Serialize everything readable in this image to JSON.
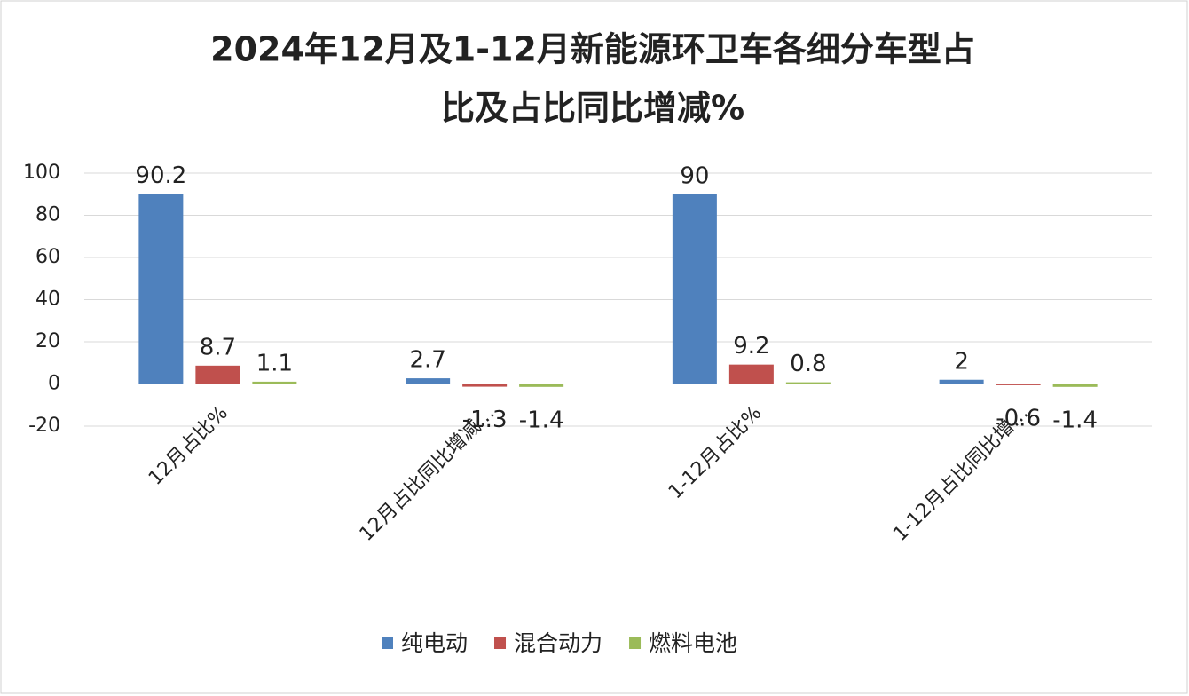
{
  "chart_data": {
    "type": "bar",
    "title": [
      "2024年12月及1-12月新能源环卫车各细分车型占",
      "比及占比同比增减%"
    ],
    "categories": [
      "12月占比%",
      "12月占比同比增减…",
      "1-12月占比%",
      "1-12月占比同比增…"
    ],
    "series": [
      {
        "name": "纯电动",
        "color": "#4f81bd",
        "values": [
          90.2,
          2.7,
          90,
          2
        ]
      },
      {
        "name": "混合动力",
        "color": "#c0504d",
        "values": [
          8.7,
          -1.3,
          9.2,
          -0.6
        ]
      },
      {
        "name": "燃料电池",
        "color": "#9bbb59",
        "values": [
          1.1,
          -1.4,
          0.8,
          -1.4
        ]
      }
    ],
    "ylim": [
      -20,
      100
    ],
    "yticks": [
      -20,
      0,
      20,
      40,
      60,
      80,
      100
    ],
    "grid": true,
    "legend": "bottom"
  }
}
